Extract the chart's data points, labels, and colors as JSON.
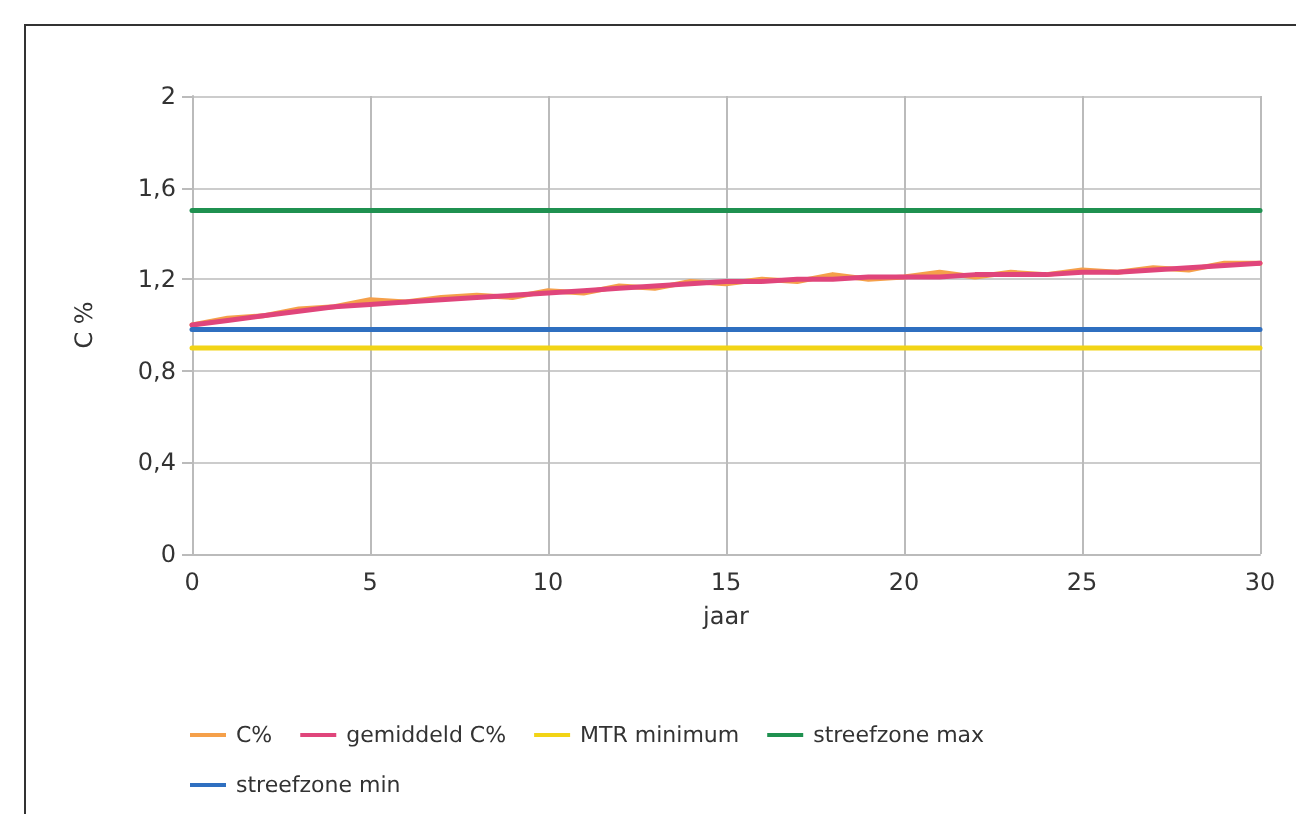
{
  "chart_data": {
    "type": "line",
    "xlabel": "jaar",
    "ylabel": "C %",
    "x": [
      0,
      1,
      2,
      3,
      4,
      5,
      6,
      7,
      8,
      9,
      10,
      11,
      12,
      13,
      14,
      15,
      16,
      17,
      18,
      19,
      20,
      21,
      22,
      23,
      24,
      25,
      26,
      27,
      28,
      29,
      30
    ],
    "series": [
      {
        "name": "C%",
        "color": "#f5a04a",
        "values": [
          1.0,
          1.03,
          1.04,
          1.07,
          1.08,
          1.11,
          1.1,
          1.12,
          1.13,
          1.12,
          1.15,
          1.14,
          1.17,
          1.16,
          1.19,
          1.18,
          1.2,
          1.19,
          1.22,
          1.2,
          1.21,
          1.23,
          1.21,
          1.23,
          1.22,
          1.24,
          1.23,
          1.25,
          1.24,
          1.27,
          1.27
        ]
      },
      {
        "name": "gemiddeld C%",
        "color": "#e0457b",
        "values": [
          1.0,
          1.02,
          1.04,
          1.06,
          1.08,
          1.09,
          1.1,
          1.11,
          1.12,
          1.13,
          1.14,
          1.15,
          1.16,
          1.17,
          1.18,
          1.19,
          1.19,
          1.2,
          1.2,
          1.21,
          1.21,
          1.21,
          1.22,
          1.22,
          1.22,
          1.23,
          1.23,
          1.24,
          1.25,
          1.26,
          1.27
        ]
      },
      {
        "name": "MTR minimum",
        "color": "#f2d416",
        "values": [
          0.9,
          0.9,
          0.9,
          0.9,
          0.9,
          0.9,
          0.9,
          0.9,
          0.9,
          0.9,
          0.9,
          0.9,
          0.9,
          0.9,
          0.9,
          0.9,
          0.9,
          0.9,
          0.9,
          0.9,
          0.9,
          0.9,
          0.9,
          0.9,
          0.9,
          0.9,
          0.9,
          0.9,
          0.9,
          0.9,
          0.9
        ]
      },
      {
        "name": "streefzone max",
        "color": "#1f9150",
        "values": [
          1.5,
          1.5,
          1.5,
          1.5,
          1.5,
          1.5,
          1.5,
          1.5,
          1.5,
          1.5,
          1.5,
          1.5,
          1.5,
          1.5,
          1.5,
          1.5,
          1.5,
          1.5,
          1.5,
          1.5,
          1.5,
          1.5,
          1.5,
          1.5,
          1.5,
          1.5,
          1.5,
          1.5,
          1.5,
          1.5,
          1.5
        ]
      },
      {
        "name": "streefzone min",
        "color": "#2f6fc0",
        "values": [
          0.98,
          0.98,
          0.98,
          0.98,
          0.98,
          0.98,
          0.98,
          0.98,
          0.98,
          0.98,
          0.98,
          0.98,
          0.98,
          0.98,
          0.98,
          0.98,
          0.98,
          0.98,
          0.98,
          0.98,
          0.98,
          0.98,
          0.98,
          0.98,
          0.98,
          0.98,
          0.98,
          0.98,
          0.98,
          0.98,
          0.98
        ]
      }
    ],
    "xlim": [
      0,
      30
    ],
    "xticks": [
      0,
      5,
      10,
      15,
      20,
      25,
      30
    ],
    "ylim": [
      0,
      2
    ],
    "yticks": [
      0,
      {
        "value": 0.4,
        "label": "0,4"
      },
      {
        "value": 0.8,
        "label": "0,8"
      },
      {
        "value": 1.2,
        "label": "1,2"
      },
      {
        "value": 1.6,
        "label": "1,6"
      },
      2
    ],
    "grid": true,
    "legend": "bottom",
    "marker": "none",
    "line_style": "solid"
  }
}
